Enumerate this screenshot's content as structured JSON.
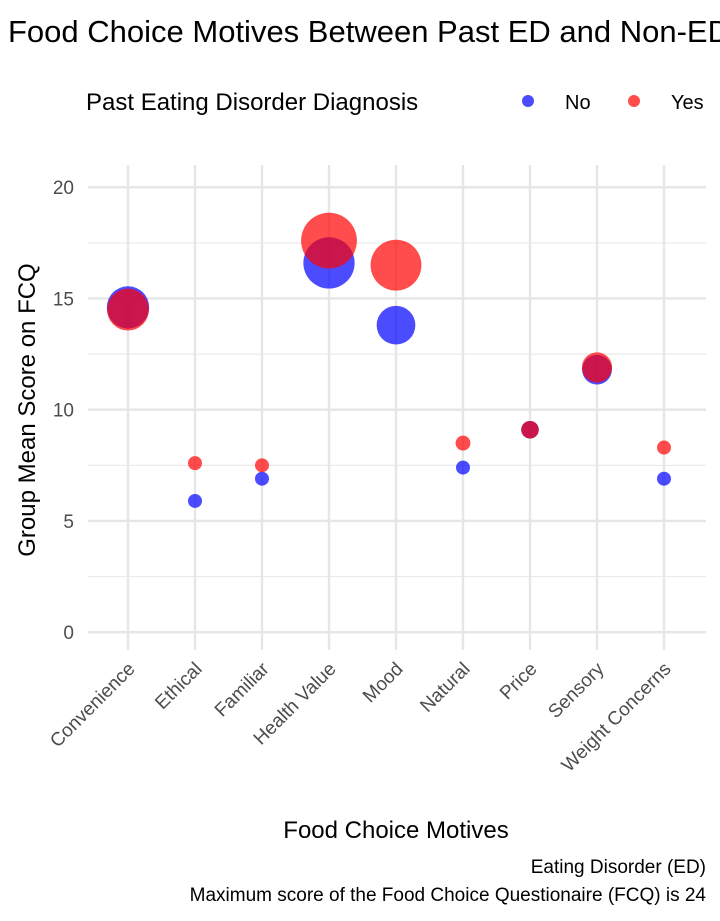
{
  "chart_data": {
    "type": "scatter",
    "title": "Food Choice Motives Between Past ED and Non-ED",
    "xlabel": "Food Choice Motives",
    "ylabel": "Group Mean Score on FCQ",
    "ylim": [
      -0.8,
      21
    ],
    "yticks": [
      0,
      5,
      10,
      15,
      20
    ],
    "grid": true,
    "legend": {
      "title": "Past Eating Disorder Diagnosis",
      "position": "top"
    },
    "caption": [
      "Eating Disorder (ED)",
      "Maximum score of the Food Choice Questionaire (FCQ) is 24"
    ],
    "categories": [
      "Convenience",
      "Ethical",
      "Familiar",
      "Health Value",
      "Mood",
      "Natural",
      "Price",
      "Sensory",
      "Weight Concerns"
    ],
    "series": [
      {
        "name": "No",
        "color": "#0000ff",
        "values": [
          14.6,
          5.9,
          6.9,
          16.6,
          13.8,
          7.4,
          9.1,
          11.8,
          6.9
        ]
      },
      {
        "name": "Yes",
        "color": "#ff0000",
        "values": [
          14.5,
          7.6,
          7.5,
          17.6,
          16.5,
          8.5,
          9.1,
          11.9,
          8.3
        ]
      }
    ]
  }
}
